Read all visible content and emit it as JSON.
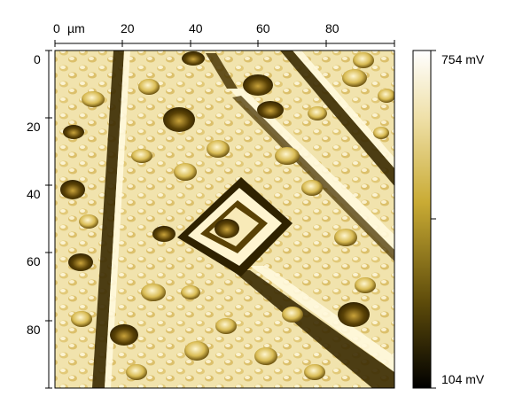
{
  "image": {
    "kind": "afm-scan",
    "colormap": [
      "#000000",
      "#5c4a0a",
      "#c9ab34",
      "#efe0a8",
      "#ffffff"
    ]
  },
  "x_axis": {
    "unit_label": "µm",
    "ticks": [
      "0",
      "20",
      "40",
      "60",
      "80"
    ]
  },
  "y_axis": {
    "ticks": [
      "0",
      "20",
      "40",
      "60",
      "80"
    ]
  },
  "colorbar": {
    "max_label": "754 mV",
    "min_label": "104 mV"
  }
}
